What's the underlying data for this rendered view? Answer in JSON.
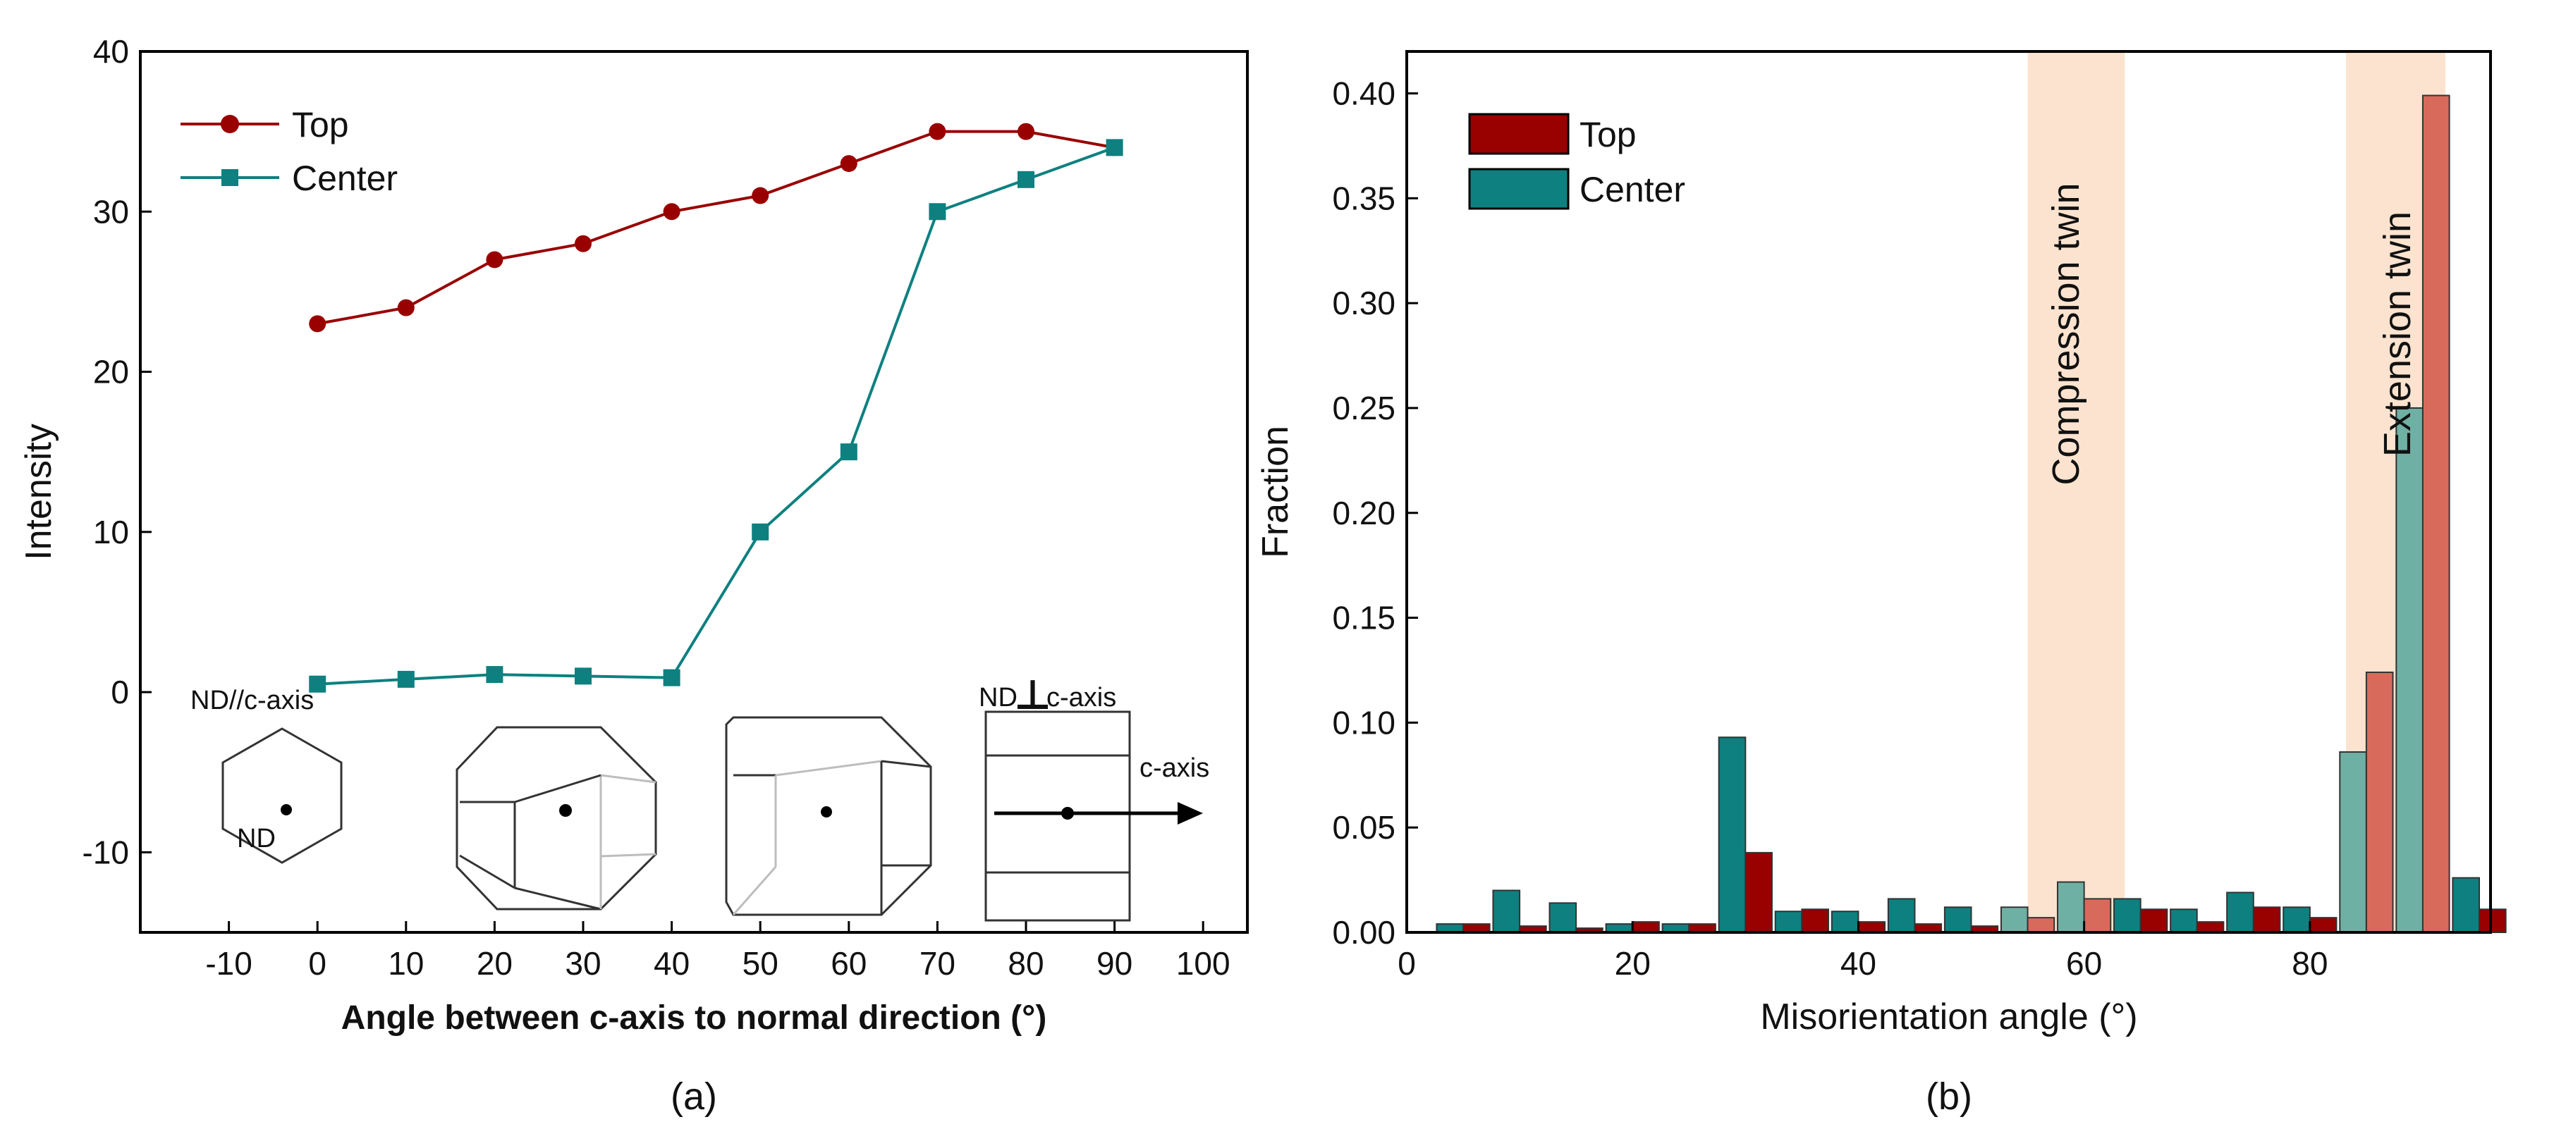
{
  "colors": {
    "top": "#990000",
    "center": "#0e8080",
    "top_light": "#d86a5c",
    "center_light": "#6fb0a4",
    "band": "#fbe3cf"
  },
  "chart_data": [
    {
      "type": "line",
      "panel_label": "(a)",
      "xlabel": "Angle between c-axis to normal direction (°)",
      "ylabel": "Intensity",
      "xlim": [
        -20,
        105
      ],
      "ylim": [
        -15,
        40
      ],
      "xticks": [
        -10,
        0,
        10,
        20,
        30,
        40,
        50,
        60,
        70,
        80,
        90,
        100
      ],
      "yticks": [
        -10,
        0,
        10,
        20,
        30,
        40
      ],
      "x": [
        0,
        10,
        20,
        30,
        40,
        50,
        60,
        70,
        80,
        90
      ],
      "series": [
        {
          "name": "Top",
          "marker": "circle",
          "values": [
            23,
            24,
            27,
            28,
            30,
            31,
            33,
            35,
            35,
            34
          ]
        },
        {
          "name": "Center",
          "marker": "square",
          "values": [
            0.5,
            0.8,
            1.1,
            1.0,
            0.9,
            10,
            15,
            30,
            32,
            34
          ]
        }
      ],
      "legend": {
        "position": "top-left",
        "entries": [
          "Top",
          "Center"
        ]
      },
      "insets": {
        "nd_parallel_label": "ND//c-axis",
        "nd_point_label": "ND",
        "nd_perp_prefix": "ND",
        "nd_perp_symbol": "⊥",
        "nd_perp_suffix": "c-axis",
        "c_axis_label": "c-axis"
      }
    },
    {
      "type": "bar",
      "panel_label": "(b)",
      "xlabel": "Misorientation angle (°)",
      "ylabel": "Fraction",
      "xlim": [
        0,
        96
      ],
      "ylim": [
        0,
        0.42
      ],
      "xticks": [
        0,
        20,
        40,
        60,
        80
      ],
      "yticks": [
        0.0,
        0.05,
        0.1,
        0.15,
        0.2,
        0.25,
        0.3,
        0.35,
        0.4
      ],
      "bin_centers": [
        5,
        10,
        15,
        20,
        25,
        30,
        35,
        40,
        45,
        50,
        55,
        60,
        65,
        70,
        75,
        80,
        85,
        90,
        95
      ],
      "series": [
        {
          "name": "Center",
          "values": [
            0.004,
            0.02,
            0.014,
            0.004,
            0.004,
            0.093,
            0.01,
            0.01,
            0.016,
            0.012,
            0.012,
            0.024,
            0.016,
            0.011,
            0.019,
            0.012,
            0.086,
            0.25,
            0.026
          ]
        },
        {
          "name": "Top",
          "values": [
            0.004,
            0.003,
            0.002,
            0.005,
            0.004,
            0.038,
            0.011,
            0.005,
            0.004,
            0.003,
            0.007,
            0.016,
            0.011,
            0.005,
            0.012,
            0.007,
            0.124,
            0.399,
            0.011
          ]
        }
      ],
      "bands": [
        {
          "label": "Compression twin",
          "range": [
            55,
            63.6
          ]
        },
        {
          "label": "Extension twin",
          "range": [
            83.2,
            92
          ]
        }
      ],
      "legend": {
        "position": "top-left",
        "entries": [
          "Top",
          "Center"
        ]
      }
    }
  ]
}
